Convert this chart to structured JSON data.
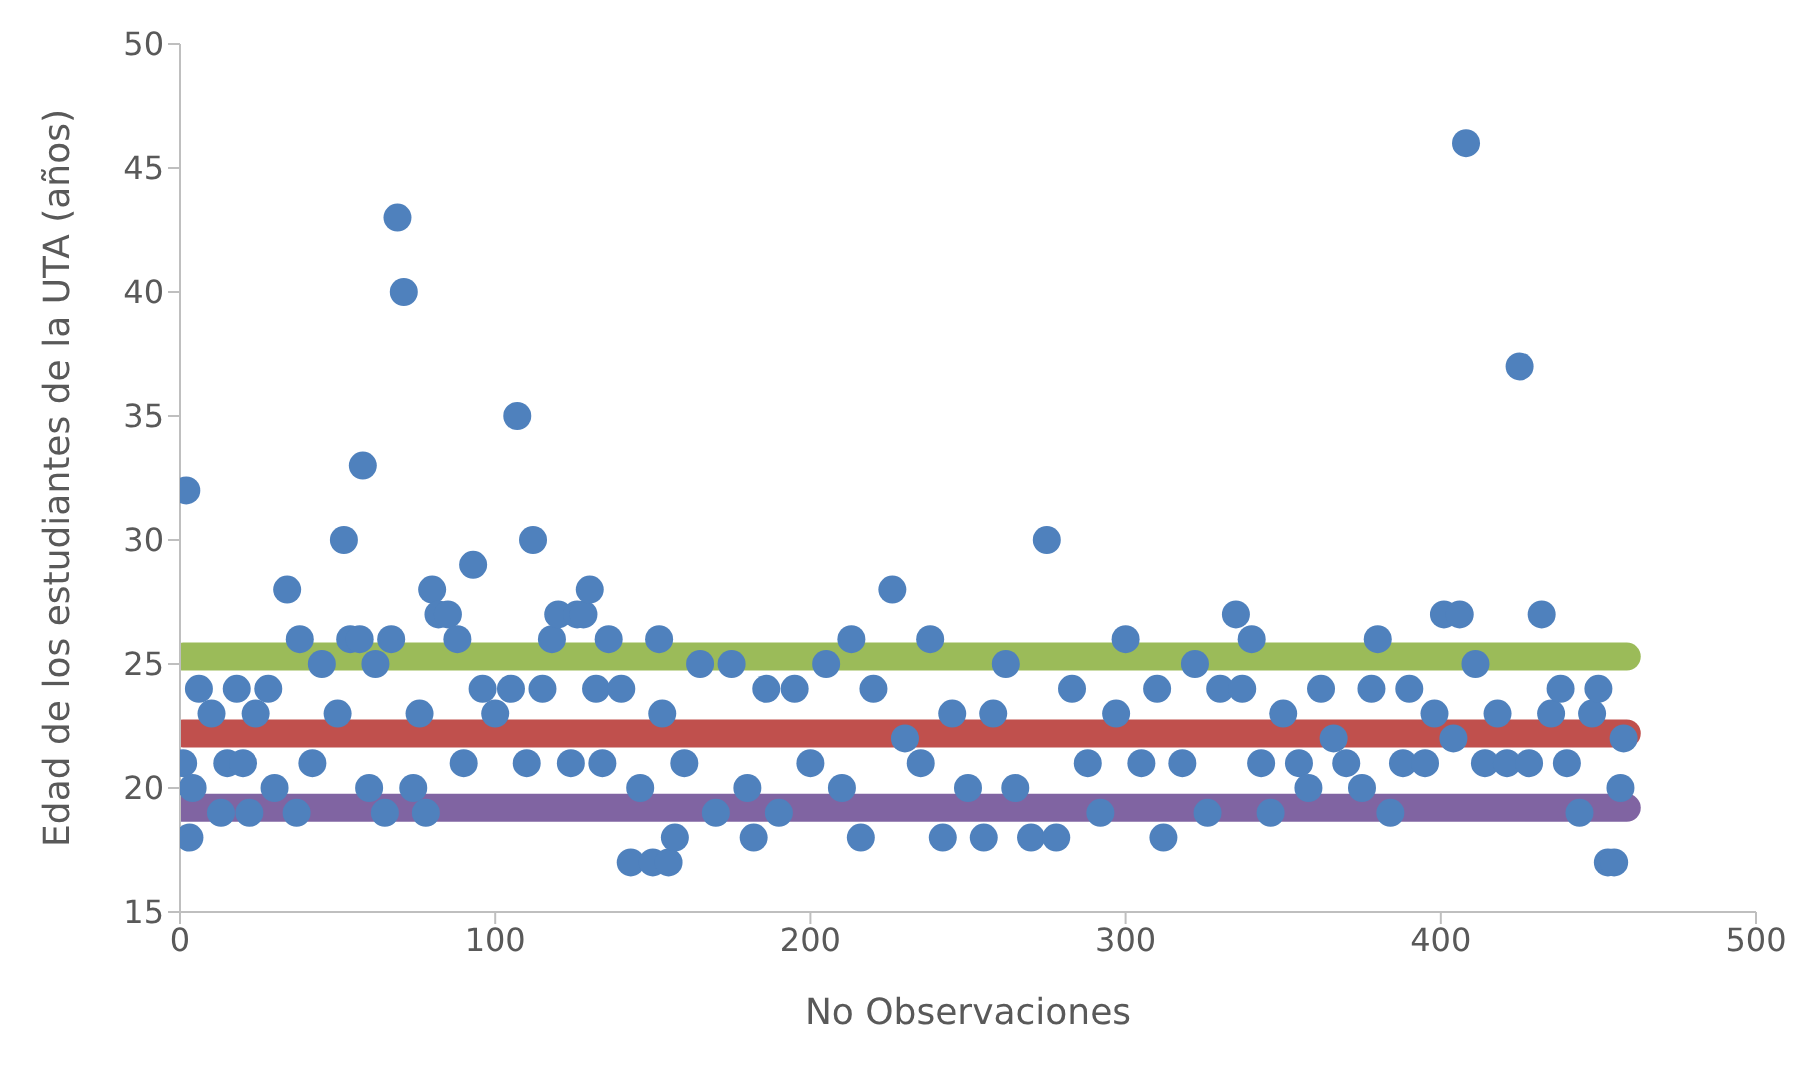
{
  "chart_data": {
    "type": "scatter",
    "xlabel": "No Observaciones",
    "ylabel": "Edad de los estudiantes de la UTA (años)",
    "xlim": [
      0,
      500
    ],
    "xticks": [
      0,
      100,
      200,
      300,
      400,
      500
    ],
    "ylim": [
      15,
      50
    ],
    "yticks": [
      15,
      20,
      25,
      30,
      35,
      40,
      45,
      50
    ],
    "grid": false,
    "series": [
      {
        "marker": "circle",
        "color": "#4f81bd",
        "x": [
          1,
          2,
          3,
          4,
          6,
          10,
          13,
          15,
          18,
          20,
          22,
          24,
          28,
          30,
          34,
          37,
          38,
          42,
          45,
          50,
          52,
          54,
          57,
          58,
          60,
          62,
          65,
          67,
          69,
          71,
          74,
          76,
          78,
          80,
          82,
          85,
          88,
          90,
          93,
          96,
          100,
          105,
          107,
          110,
          112,
          115,
          118,
          120,
          124,
          126,
          128,
          130,
          132,
          134,
          136,
          140,
          143,
          146,
          150,
          152,
          153,
          155,
          157,
          160,
          165,
          170,
          175,
          180,
          182,
          186,
          190,
          195,
          200,
          205,
          210,
          213,
          216,
          220,
          226,
          230,
          235,
          238,
          242,
          245,
          250,
          255,
          258,
          262,
          265,
          270,
          275,
          278,
          283,
          288,
          292,
          297,
          300,
          305,
          310,
          312,
          318,
          322,
          326,
          330,
          335,
          337,
          340,
          343,
          346,
          350,
          355,
          358,
          362,
          366,
          370,
          375,
          378,
          380,
          384,
          388,
          390,
          395,
          398,
          401,
          404,
          406,
          408,
          411,
          414,
          418,
          421,
          425,
          428,
          432,
          435,
          438,
          440,
          444,
          448,
          450,
          453,
          455,
          457,
          458
        ],
        "values": [
          21,
          32,
          18,
          20,
          24,
          23,
          19,
          21,
          24,
          21,
          19,
          23,
          24,
          20,
          28,
          19,
          26,
          21,
          25,
          23,
          30,
          26,
          26,
          33,
          20,
          25,
          19,
          26,
          43,
          40,
          20,
          23,
          19,
          28,
          27,
          27,
          26,
          21,
          29,
          24,
          23,
          24,
          35,
          21,
          30,
          24,
          26,
          27,
          21,
          27,
          27,
          28,
          24,
          21,
          26,
          24,
          17,
          20,
          17,
          26,
          23,
          17,
          18,
          21,
          25,
          19,
          25,
          20,
          18,
          24,
          19,
          24,
          21,
          25,
          20,
          26,
          18,
          24,
          28,
          22,
          21,
          26,
          18,
          23,
          20,
          18,
          23,
          25,
          20,
          18,
          30,
          18,
          24,
          21,
          19,
          23,
          26,
          21,
          24,
          18,
          21,
          25,
          19,
          24,
          27,
          24,
          26,
          21,
          19,
          23,
          21,
          20,
          24,
          22,
          21,
          20,
          24,
          26,
          19,
          21,
          24,
          21,
          23,
          27,
          22,
          27,
          46,
          25,
          21,
          23,
          21,
          37,
          21,
          27,
          23,
          24,
          21,
          19,
          23,
          24,
          17,
          17,
          20,
          22
        ]
      },
      {
        "type": "line",
        "marker": "none",
        "color": "#9bbb59",
        "x": [
          1,
          459
        ],
        "values": [
          25.3,
          25.3
        ]
      },
      {
        "type": "line",
        "marker": "none",
        "color": "#c0504d",
        "x": [
          1,
          459
        ],
        "values": [
          22.2,
          22.2
        ]
      },
      {
        "type": "line",
        "marker": "none",
        "color": "#8064a2",
        "x": [
          1,
          459
        ],
        "values": [
          19.2,
          19.2
        ]
      }
    ]
  }
}
